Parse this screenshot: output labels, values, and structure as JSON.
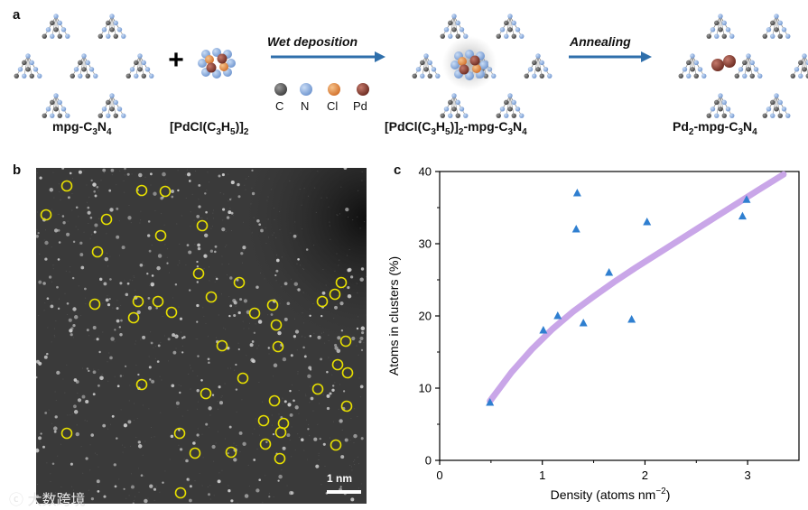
{
  "panel_a": {
    "letter": "a",
    "reactant1": {
      "prefix": "mpg-C",
      "sub1": "3",
      "mid": "N",
      "sub2": "4"
    },
    "plus": "+",
    "reactant2": {
      "a": "[PdCl(C",
      "s1": "3",
      "b": "H",
      "s2": "5",
      "c": ")]",
      "s3": "2"
    },
    "step1": "Wet deposition",
    "intermediate": {
      "a": "[PdCl(C",
      "s1": "3",
      "b": "H",
      "s2": "5",
      "c": ")]",
      "s3": "2",
      "d": "-mpg-C",
      "s4": "3",
      "e": "N",
      "s5": "4"
    },
    "step2": "Annealing",
    "product": {
      "a": "Pd",
      "s1": "2",
      "b": "-mpg-C",
      "s2": "3",
      "c": "N",
      "s3": "4"
    },
    "legend": [
      {
        "label": "C",
        "color": "#555555"
      },
      {
        "label": "N",
        "color": "#7ea2d8"
      },
      {
        "label": "Cl",
        "color": "#e08a3c"
      },
      {
        "label": "Pd",
        "color": "#7a3a2e"
      }
    ],
    "colors": {
      "arrow": "#2f6fab",
      "carbon": "#555555",
      "nitrogen": "#7ea2d8",
      "chlorine": "#e08a3c",
      "palladium": "#7a3a2e"
    }
  },
  "panel_b": {
    "letter": "b",
    "scale_bar_label": "1 nm",
    "watermark": "大数跨境",
    "colors": {
      "circle": "#e8e000"
    }
  },
  "panel_c": {
    "letter": "c"
  },
  "chart_data": {
    "type": "scatter",
    "title": "",
    "xlabel": "Density (atoms nm",
    "xlabel_sup": "−2",
    "xlabel_end": ")",
    "ylabel": "Atoms in clusters (%)",
    "xlim": [
      0,
      3.5
    ],
    "ylim": [
      0,
      40
    ],
    "xticks": [
      0,
      1,
      2,
      3
    ],
    "yticks": [
      0,
      10,
      20,
      30,
      40
    ],
    "series": [
      {
        "name": "data",
        "marker": "triangle",
        "color": "#2f7fd0",
        "x": [
          0.49,
          1.01,
          1.15,
          1.33,
          1.34,
          1.4,
          1.65,
          1.87,
          2.02,
          2.95,
          2.99
        ],
        "y": [
          8.0,
          18.0,
          20.0,
          32.0,
          37.0,
          19.0,
          26.0,
          19.5,
          33.0,
          33.8,
          36.1
        ]
      },
      {
        "name": "fit",
        "type": "line",
        "color": "#c9a6e8",
        "x": [
          0.49,
          0.7,
          0.9,
          1.1,
          1.3,
          1.5,
          1.7,
          1.9,
          2.1,
          2.3,
          2.5,
          2.7,
          2.9,
          3.1,
          3.35
        ],
        "y": [
          8.2,
          12.2,
          15.4,
          18.2,
          20.6,
          22.7,
          24.7,
          26.6,
          28.4,
          30.2,
          32.0,
          33.8,
          35.6,
          37.4,
          39.6
        ]
      }
    ]
  }
}
